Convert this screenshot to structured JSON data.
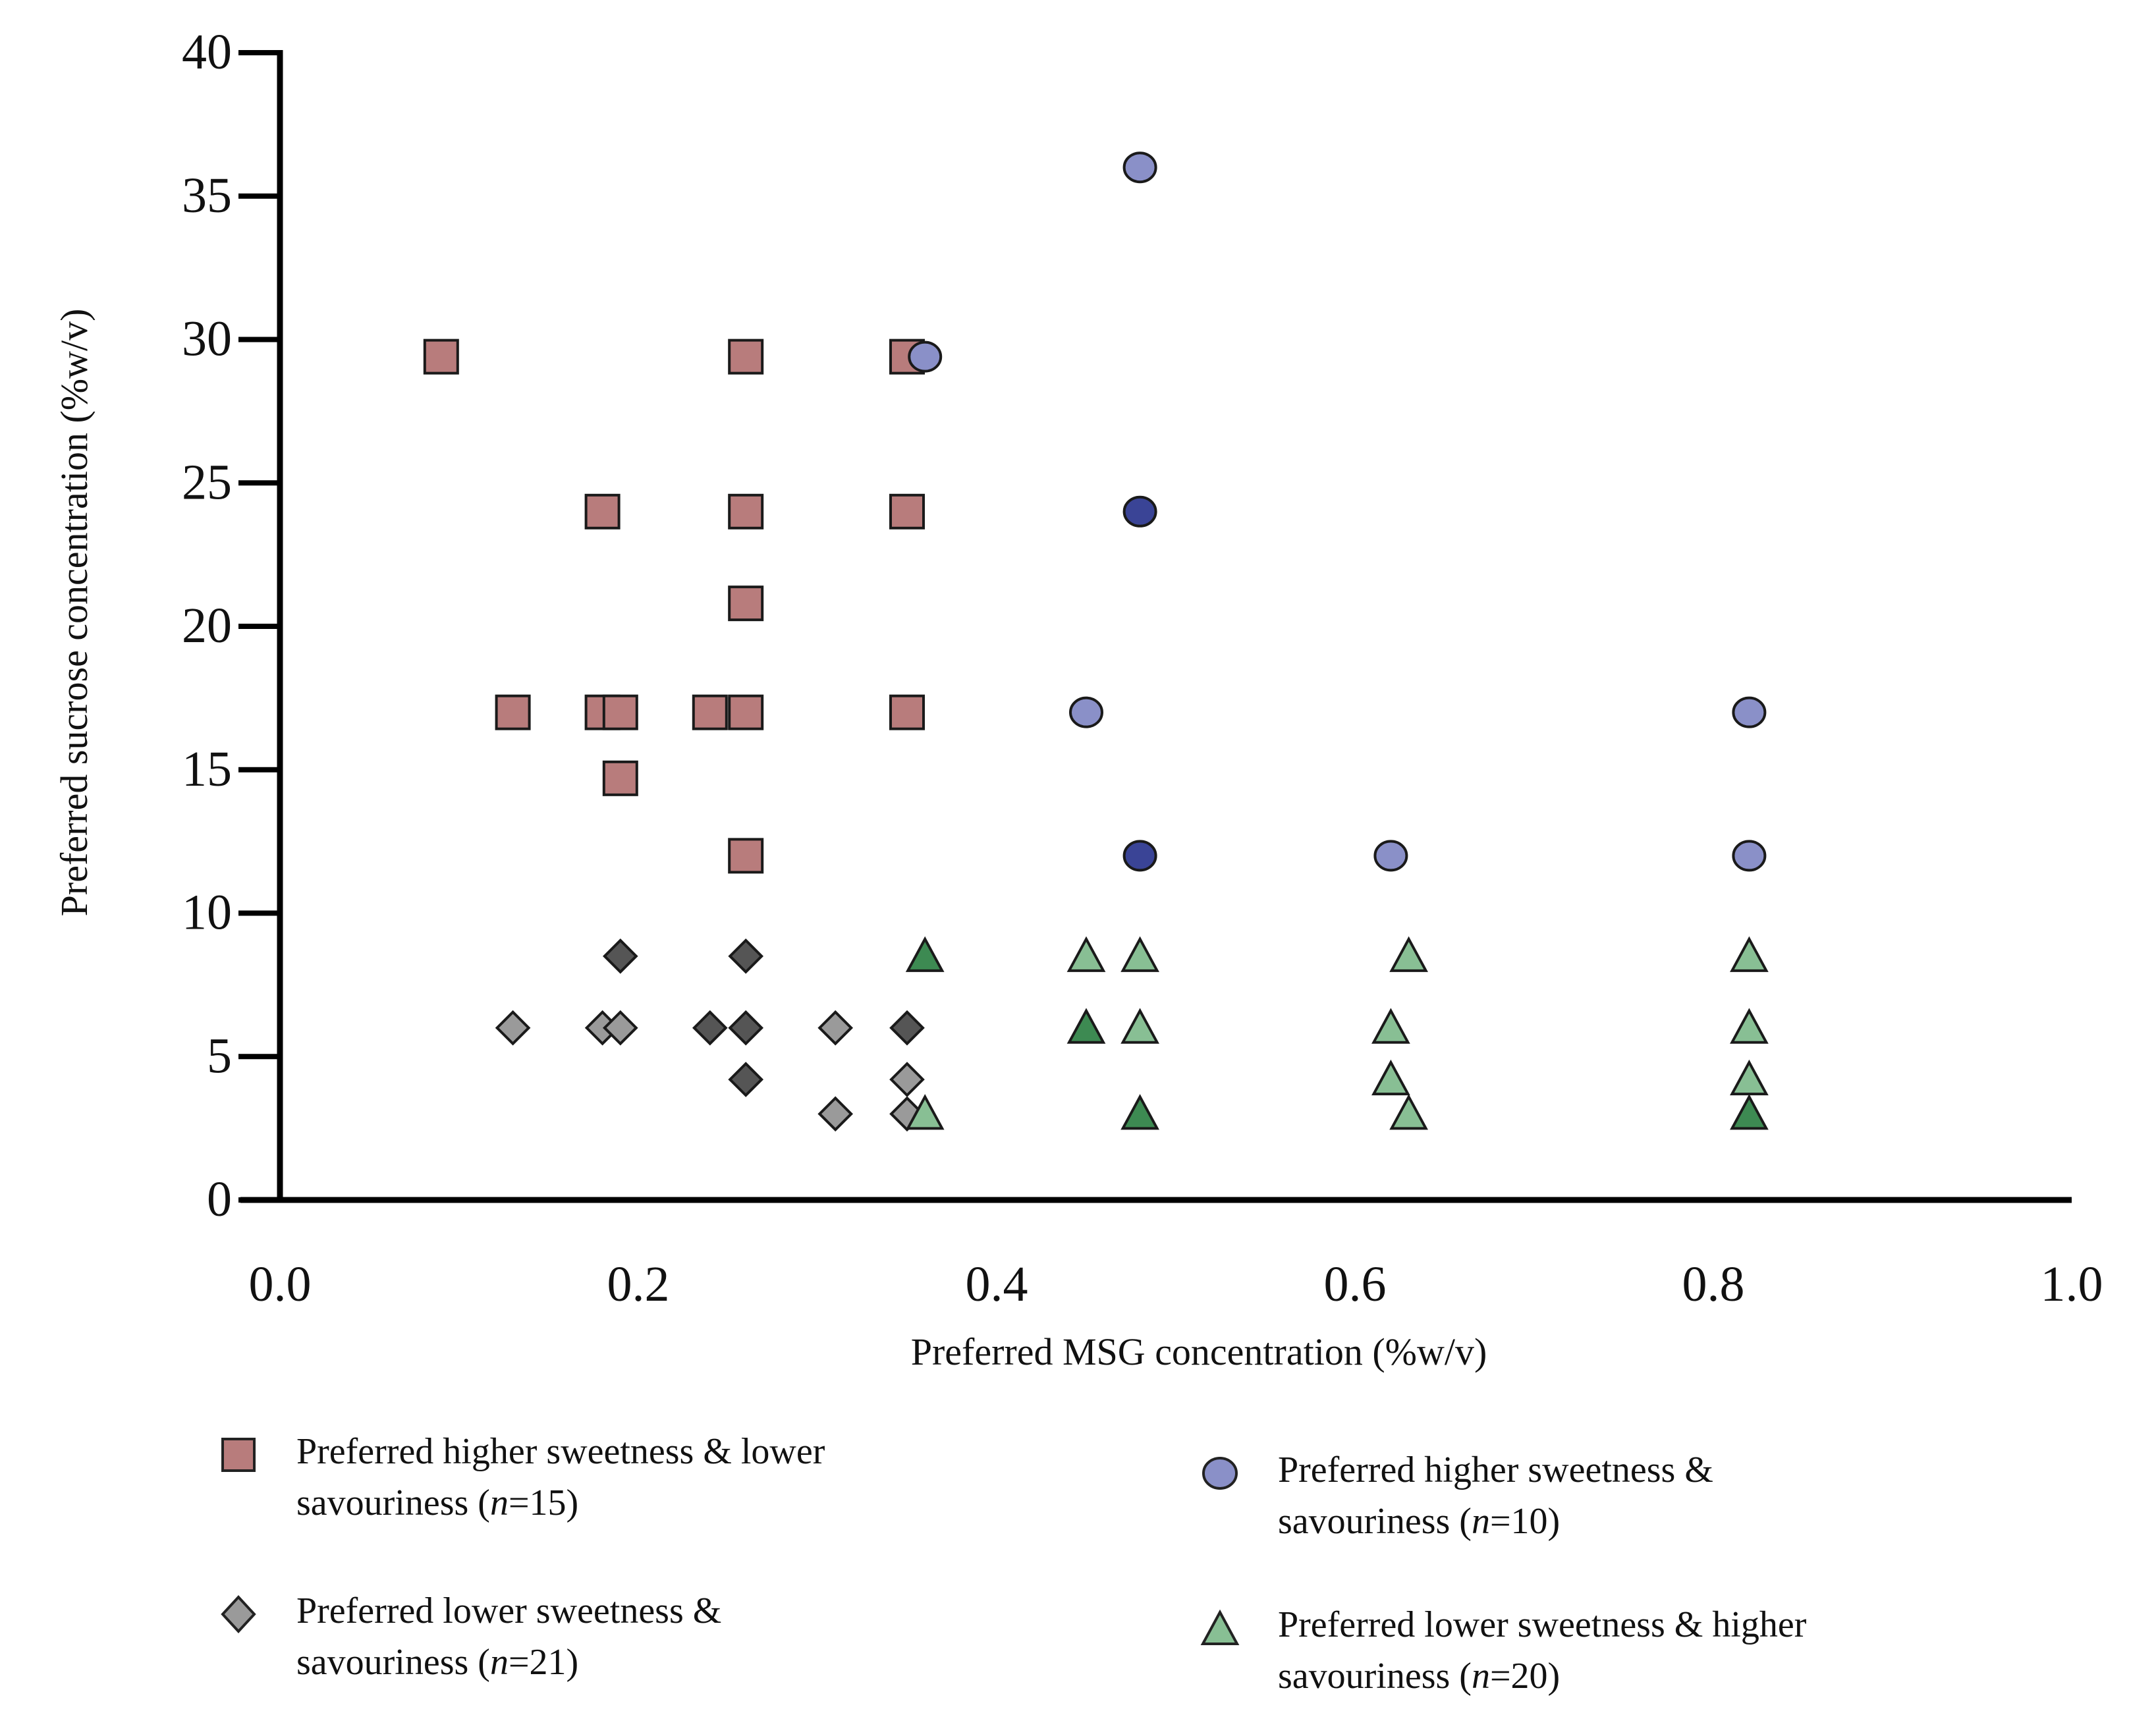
{
  "chart_data": {
    "type": "scatter",
    "xlabel": "Preferred MSG concentration (%w/v)",
    "ylabel": "Preferred sucrose concentration (%w/v)",
    "xlim": [
      0.0,
      1.0
    ],
    "ylim": [
      0,
      40
    ],
    "xticks": [
      "0.0",
      "0.2",
      "0.4",
      "0.6",
      "0.8",
      "1.0"
    ],
    "yticks": [
      "0",
      "5",
      "10",
      "15",
      "20",
      "25",
      "30",
      "35",
      "40"
    ],
    "grid": false,
    "legend_position": "bottom",
    "series": [
      {
        "name": "Preferred higher sweetness & lower savouriness",
        "label_line1": "Preferred higher sweetness & lower",
        "label_line2_pre": "savouriness (",
        "label_n": "n",
        "label_line2_post": "=15)",
        "marker": "square",
        "color": "#b87c7c",
        "dark_color": "#9c4a4a",
        "points": [
          {
            "x": 0.09,
            "y": 29.4
          },
          {
            "x": 0.26,
            "y": 29.4
          },
          {
            "x": 0.35,
            "y": 29.4
          },
          {
            "x": 0.18,
            "y": 24.0
          },
          {
            "x": 0.26,
            "y": 24.0
          },
          {
            "x": 0.35,
            "y": 24.0
          },
          {
            "x": 0.26,
            "y": 20.8
          },
          {
            "x": 0.13,
            "y": 17.0
          },
          {
            "x": 0.18,
            "y": 17.0
          },
          {
            "x": 0.19,
            "y": 17.0
          },
          {
            "x": 0.24,
            "y": 17.0
          },
          {
            "x": 0.26,
            "y": 17.0
          },
          {
            "x": 0.35,
            "y": 17.0
          },
          {
            "x": 0.19,
            "y": 14.7
          },
          {
            "x": 0.26,
            "y": 12.0
          }
        ]
      },
      {
        "name": "Preferred higher sweetness & savouriness",
        "label_line1": "Preferred higher sweetness &",
        "label_line2_pre": "savouriness (",
        "label_n": "n",
        "label_line2_post": "=10)",
        "marker": "circle",
        "color": "#8a90c8",
        "dark_color": "#3a4496",
        "points": [
          {
            "x": 0.48,
            "y": 36.0
          },
          {
            "x": 0.36,
            "y": 29.4
          },
          {
            "x": 0.48,
            "y": 24.0,
            "dark": true
          },
          {
            "x": 0.45,
            "y": 17.0
          },
          {
            "x": 0.82,
            "y": 17.0
          },
          {
            "x": 0.48,
            "y": 12.0,
            "dark": true
          },
          {
            "x": 0.62,
            "y": 12.0
          },
          {
            "x": 0.82,
            "y": 12.0
          }
        ]
      },
      {
        "name": "Preferred lower sweetness & savouriness",
        "label_line1": "Preferred lower sweetness &",
        "label_line2_pre": "savouriness (",
        "label_n": "n",
        "label_line2_post": "=21)",
        "marker": "diamond",
        "color": "#9a9a9a",
        "dark_color": "#555555",
        "points": [
          {
            "x": 0.19,
            "y": 8.5,
            "dark": true
          },
          {
            "x": 0.26,
            "y": 8.5,
            "dark": true
          },
          {
            "x": 0.13,
            "y": 6.0
          },
          {
            "x": 0.18,
            "y": 6.0
          },
          {
            "x": 0.19,
            "y": 6.0
          },
          {
            "x": 0.24,
            "y": 6.0,
            "dark": true
          },
          {
            "x": 0.26,
            "y": 6.0,
            "dark": true
          },
          {
            "x": 0.31,
            "y": 6.0
          },
          {
            "x": 0.35,
            "y": 6.0,
            "dark": true
          },
          {
            "x": 0.26,
            "y": 4.2,
            "dark": true
          },
          {
            "x": 0.35,
            "y": 4.2
          },
          {
            "x": 0.31,
            "y": 3.0
          },
          {
            "x": 0.35,
            "y": 3.0
          }
        ]
      },
      {
        "name": "Preferred lower sweetness & higher savouriness",
        "label_line1": "Preferred lower sweetness & higher",
        "label_line2_pre": "savouriness (",
        "label_n": "n",
        "label_line2_post": "=20)",
        "marker": "triangle",
        "color": "#88bf94",
        "dark_color": "#3d8a52",
        "points": [
          {
            "x": 0.36,
            "y": 8.5,
            "dark": true
          },
          {
            "x": 0.45,
            "y": 8.5
          },
          {
            "x": 0.48,
            "y": 8.5
          },
          {
            "x": 0.63,
            "y": 8.5
          },
          {
            "x": 0.82,
            "y": 8.5
          },
          {
            "x": 0.45,
            "y": 6.0,
            "dark": true
          },
          {
            "x": 0.48,
            "y": 6.0
          },
          {
            "x": 0.62,
            "y": 6.0
          },
          {
            "x": 0.82,
            "y": 6.0
          },
          {
            "x": 0.62,
            "y": 4.2
          },
          {
            "x": 0.82,
            "y": 4.2
          },
          {
            "x": 0.36,
            "y": 3.0
          },
          {
            "x": 0.48,
            "y": 3.0,
            "dark": true
          },
          {
            "x": 0.63,
            "y": 3.0
          },
          {
            "x": 0.82,
            "y": 3.0,
            "dark": true
          }
        ]
      }
    ]
  }
}
